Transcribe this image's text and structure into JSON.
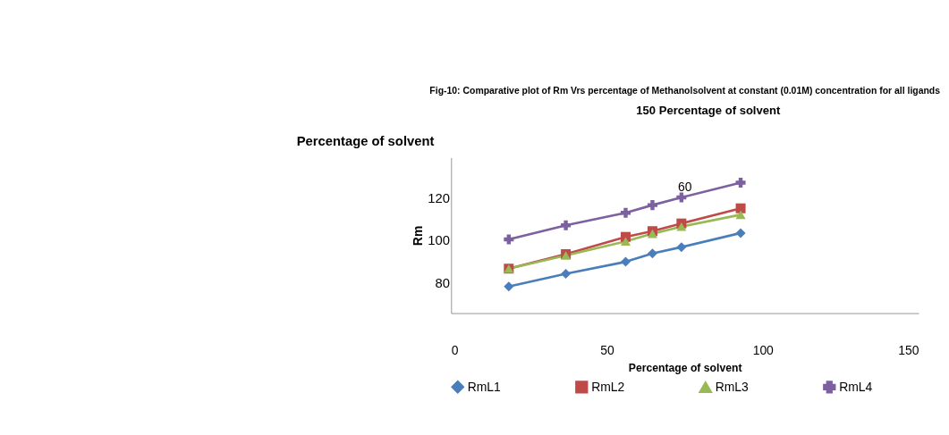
{
  "chart_data": {
    "type": "line",
    "title": "Fig-10: Comparative plot of Rm Vrs percentage of Methanolsolvent at constant (0.01M) concentration for all ligands",
    "xlabel": "Percentage of solvent",
    "ylabel": "Rm",
    "x": [
      18.5,
      36.8,
      56,
      64.6,
      73.9,
      92.9
    ],
    "series": [
      {
        "name": "RmL1",
        "color": "#4a7ebb",
        "marker": "diamond",
        "values": [
          78.5,
          84.5,
          90.1,
          94.0,
          97.0,
          103.6
        ]
      },
      {
        "name": "RmL2",
        "color": "#be4b48",
        "marker": "square",
        "values": [
          86.9,
          93.7,
          101.8,
          104.5,
          108.1,
          115.2
        ]
      },
      {
        "name": "RmL3",
        "color": "#98b954",
        "marker": "triangle",
        "values": [
          86.9,
          93.1,
          99.7,
          103.3,
          106.6,
          112.2
        ]
      },
      {
        "name": "RmL4",
        "color": "#7d60a0",
        "marker": "cross",
        "values": [
          100.6,
          107.2,
          113.1,
          116.7,
          120.3,
          127.2
        ]
      }
    ],
    "xlim": [
      0,
      150
    ],
    "xticks": [
      0,
      50,
      100,
      150
    ],
    "ylim": [
      66,
      139
    ],
    "yticks": [
      80,
      100,
      120
    ],
    "grid": false,
    "legend": "bottom",
    "line_style": "solid",
    "annotations": [
      "Percentage of solvent",
      "150 Percentage of solvent",
      "60"
    ]
  }
}
